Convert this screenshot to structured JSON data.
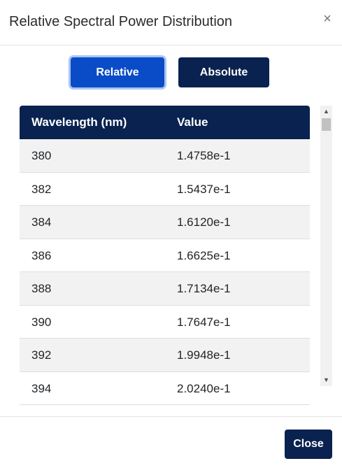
{
  "dialog": {
    "title": "Relative Spectral Power Distribution",
    "close_glyph": "×"
  },
  "toggle": {
    "relative_label": "Relative",
    "absolute_label": "Absolute",
    "selected": "Relative"
  },
  "table": {
    "headers": [
      "Wavelength (nm)",
      "Value"
    ],
    "rows": [
      [
        "380",
        "1.4758e-1"
      ],
      [
        "382",
        "1.5437e-1"
      ],
      [
        "384",
        "1.6120e-1"
      ],
      [
        "386",
        "1.6625e-1"
      ],
      [
        "388",
        "1.7134e-1"
      ],
      [
        "390",
        "1.7647e-1"
      ],
      [
        "392",
        "1.9948e-1"
      ],
      [
        "394",
        "2.0240e-1"
      ]
    ]
  },
  "scrollbar": {
    "up_glyph": "▲",
    "down_glyph": "▼"
  },
  "footer": {
    "close_label": "Close"
  },
  "colors": {
    "primary_navy": "#09224f",
    "active_blue": "#0a4cc7",
    "row_stripe": "#f2f2f2"
  }
}
